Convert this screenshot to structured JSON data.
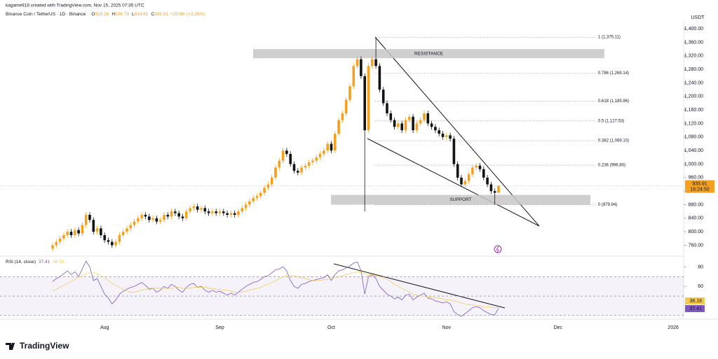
{
  "header": {
    "credit": "kagame918 created with TradingView.com, Nov 15, 2025 07:35 UTC"
  },
  "footer": "TradingView",
  "chart_data": [
    {
      "type": "candlestick",
      "title": "Binance Coin / TetherUS · 1D · Binance",
      "ohlc_prefixes": [
        "O",
        "H",
        "L",
        "C"
      ],
      "change": {
        "value": 20.66,
        "label": "+20.66"
      },
      "change_pct": {
        "value": 2.26,
        "label": "(+2.26%)"
      },
      "countdown": "16:24:50",
      "y_axis_label": "USDT",
      "colors": {
        "up": "#f5a01e",
        "down": "#131313"
      },
      "categories": [
        null,
        null,
        null,
        null,
        null,
        null,
        null,
        null,
        null,
        null,
        null,
        null,
        null,
        null,
        "Aug",
        null,
        null,
        null,
        null,
        null,
        null,
        null,
        null,
        null,
        null,
        null,
        null,
        null,
        null,
        null,
        null,
        null,
        null,
        null,
        null,
        null,
        null,
        null,
        null,
        null,
        null,
        null,
        null,
        null,
        null,
        "Sep",
        null,
        null,
        null,
        null,
        null,
        null,
        null,
        null,
        null,
        null,
        null,
        null,
        null,
        null,
        null,
        null,
        null,
        null,
        null,
        null,
        null,
        null,
        null,
        null,
        null,
        null,
        null,
        null,
        null,
        "Oct",
        null,
        null,
        null,
        null,
        null,
        null,
        null,
        null,
        null,
        null,
        null,
        null,
        null,
        null,
        null,
        null,
        null,
        null,
        null,
        null,
        null,
        null,
        null,
        null,
        null,
        null,
        null,
        null,
        null,
        null,
        "Nov",
        null,
        null,
        null,
        null,
        null,
        null,
        null,
        null,
        null,
        null,
        null,
        null,
        null,
        null,
        null,
        null,
        null,
        null,
        null,
        null,
        null,
        null,
        null,
        null,
        null,
        null,
        null,
        null,
        null,
        "Dec",
        null,
        null,
        null,
        null,
        null,
        null,
        null,
        null,
        null,
        null,
        null,
        null,
        null,
        null,
        null,
        null,
        null,
        null,
        null,
        null,
        null,
        null,
        null,
        null,
        null,
        null,
        null,
        null,
        null,
        null,
        "2026"
      ],
      "open": [
        750,
        760,
        770,
        780,
        790,
        800,
        790,
        805,
        795,
        820,
        850,
        835,
        800,
        810,
        790,
        775,
        770,
        760,
        770,
        790,
        800,
        810,
        820,
        830,
        840,
        850,
        845,
        835,
        840,
        830,
        835,
        850,
        845,
        860,
        855,
        845,
        840,
        860,
        870,
        875,
        865,
        870,
        860,
        855,
        860,
        855,
        860,
        855,
        850,
        855,
        850,
        860,
        870,
        880,
        890,
        900,
        905,
        915,
        930,
        940,
        960,
        990,
        1010,
        1040,
        1030,
        1000,
        980,
        975,
        990,
        995,
        1005,
        1010,
        1020,
        1030,
        1040,
        1060,
        1040,
        1090,
        1130,
        1150,
        1190,
        1230,
        1290,
        1310,
        1260,
        1100,
        1290,
        1310,
        1290,
        1220,
        1180,
        1150,
        1130,
        1110,
        1120,
        1100,
        1130,
        1140,
        1100,
        1120,
        1130,
        1150,
        1120,
        1110,
        1100,
        1090,
        1080,
        1085,
        1075,
        1000,
        960,
        940,
        950,
        970,
        990,
        995,
        985,
        960,
        940,
        920,
        915.26,
        null,
        null,
        null,
        null,
        null,
        null,
        null,
        null,
        null,
        null,
        null,
        null,
        null,
        null,
        null,
        null,
        null,
        null,
        null,
        null,
        null,
        null,
        null,
        null,
        null,
        null,
        null,
        null,
        null,
        null,
        null,
        null,
        null,
        null,
        null,
        null,
        null,
        null,
        null,
        null,
        null,
        null,
        null,
        null,
        null,
        null,
        null
      ],
      "high": [
        768,
        778,
        788,
        798,
        808,
        808,
        813,
        813,
        828,
        858,
        858,
        843,
        818,
        818,
        798,
        783,
        778,
        778,
        798,
        808,
        818,
        828,
        838,
        848,
        858,
        858,
        853,
        848,
        848,
        843,
        858,
        858,
        868,
        868,
        863,
        853,
        868,
        878,
        883,
        883,
        878,
        878,
        868,
        868,
        868,
        868,
        868,
        863,
        863,
        863,
        868,
        878,
        888,
        898,
        908,
        913,
        923,
        938,
        948,
        968,
        998,
        1018,
        1048,
        1048,
        1038,
        1008,
        988,
        998,
        1003,
        1013,
        1018,
        1028,
        1038,
        1048,
        1068,
        1068,
        1098,
        1138,
        1158,
        1198,
        1238,
        1298,
        1318,
        1318,
        1268,
        1298,
        1318,
        1375.11,
        1298,
        1228,
        1188,
        1158,
        1138,
        1128,
        1128,
        1138,
        1148,
        1148,
        1128,
        1138,
        1158,
        1158,
        1128,
        1118,
        1108,
        1098,
        1093,
        1093,
        1083,
        1008,
        968,
        958,
        978,
        998,
        1003,
        1003,
        993,
        968,
        948,
        928,
        936.79,
        null,
        null,
        null,
        null,
        null,
        null,
        null,
        null,
        null,
        null,
        null,
        null,
        null,
        null,
        null,
        null,
        null,
        null,
        null,
        null,
        null,
        null,
        null,
        null,
        null,
        null,
        null,
        null,
        null,
        null,
        null,
        null,
        null,
        null,
        null,
        null,
        null,
        null,
        null,
        null,
        null,
        null,
        null,
        null,
        null,
        null,
        null
      ],
      "low": [
        742,
        752,
        762,
        772,
        782,
        782,
        782,
        787,
        787,
        812,
        827,
        792,
        792,
        782,
        767,
        762,
        752,
        752,
        762,
        782,
        792,
        802,
        812,
        822,
        832,
        837,
        827,
        827,
        822,
        822,
        827,
        837,
        837,
        847,
        837,
        832,
        832,
        852,
        862,
        857,
        857,
        852,
        847,
        847,
        847,
        847,
        847,
        842,
        842,
        842,
        842,
        852,
        862,
        872,
        882,
        892,
        897,
        907,
        922,
        932,
        952,
        982,
        1002,
        1022,
        992,
        972,
        967,
        967,
        982,
        987,
        997,
        1002,
        1012,
        1022,
        1032,
        1032,
        1032,
        1082,
        1122,
        1142,
        1182,
        1222,
        1282,
        1252,
        860,
        1092,
        1282,
        1282,
        1212,
        1172,
        1142,
        1122,
        1102,
        1102,
        1092,
        1092,
        1122,
        1092,
        1092,
        1112,
        1122,
        1112,
        1102,
        1092,
        1082,
        1072,
        1072,
        1067,
        992,
        952,
        932,
        932,
        942,
        962,
        982,
        977,
        952,
        932,
        912,
        879.94,
        914.91,
        null,
        null,
        null,
        null,
        null,
        null,
        null,
        null,
        null,
        null,
        null,
        null,
        null,
        null,
        null,
        null,
        null,
        null,
        null,
        null,
        null,
        null,
        null,
        null,
        null,
        null,
        null,
        null,
        null,
        null,
        null,
        null,
        null,
        null,
        null,
        null,
        null,
        null,
        null,
        null,
        null,
        null,
        null,
        null,
        null,
        null,
        null
      ],
      "close": [
        760,
        770,
        780,
        790,
        800,
        790,
        805,
        795,
        820,
        850,
        835,
        800,
        810,
        790,
        775,
        770,
        760,
        770,
        790,
        800,
        810,
        820,
        830,
        840,
        850,
        845,
        835,
        840,
        830,
        835,
        850,
        845,
        860,
        855,
        845,
        840,
        860,
        870,
        875,
        865,
        870,
        860,
        855,
        860,
        855,
        860,
        855,
        850,
        855,
        850,
        860,
        870,
        880,
        890,
        900,
        905,
        915,
        930,
        940,
        960,
        990,
        1010,
        1040,
        1030,
        1000,
        980,
        975,
        990,
        995,
        1005,
        1010,
        1020,
        1030,
        1040,
        1060,
        1040,
        1090,
        1130,
        1150,
        1190,
        1230,
        1290,
        1310,
        1260,
        1100,
        1290,
        1310,
        1290,
        1220,
        1180,
        1150,
        1130,
        1110,
        1120,
        1100,
        1130,
        1140,
        1100,
        1120,
        1130,
        1150,
        1120,
        1110,
        1100,
        1090,
        1080,
        1085,
        1075,
        1000,
        960,
        940,
        950,
        970,
        990,
        995,
        985,
        960,
        940,
        920,
        915.26,
        935.91,
        null,
        null,
        null,
        null,
        null,
        null,
        null,
        null,
        null,
        null,
        null,
        null,
        null,
        null,
        null,
        null,
        null,
        null,
        null,
        null,
        null,
        null,
        null,
        null,
        null,
        null,
        null,
        null,
        null,
        null,
        null,
        null,
        null,
        null,
        null,
        null,
        null,
        null,
        null,
        null,
        null,
        null,
        null,
        null,
        null,
        null,
        null
      ],
      "ylim": [
        730,
        1423
      ],
      "yticks": [
        {
          "value": 760,
          "label": "760.00"
        },
        {
          "value": 800,
          "label": "800.00"
        },
        {
          "value": 840,
          "label": "840.00"
        },
        {
          "value": 880,
          "label": "880.00"
        },
        {
          "value": 920,
          "label": "920.00"
        },
        {
          "value": 960,
          "label": "960.00"
        },
        {
          "value": 1000,
          "label": "1,000.00"
        },
        {
          "value": 1040,
          "label": "1,040.00"
        },
        {
          "value": 1080,
          "label": "1,080.00"
        },
        {
          "value": 1120,
          "label": "1,120.00"
        },
        {
          "value": 1160,
          "label": "1,160.00"
        },
        {
          "value": 1200,
          "label": "1,200.00"
        },
        {
          "value": 1240,
          "label": "1,240.00"
        },
        {
          "value": 1280,
          "label": "1,280.00"
        },
        {
          "value": 1320,
          "label": "1,320.00"
        },
        {
          "value": 1360,
          "label": "1,360.00"
        },
        {
          "value": 1400,
          "label": "1,400.00"
        }
      ],
      "fib_levels": [
        {
          "value": 1375.11,
          "label": "1 (1,375.11)"
        },
        {
          "value": 1269.14,
          "label": "0.786 (1,269.14)"
        },
        {
          "value": 1185.96,
          "label": "0.618 (1,185.96)"
        },
        {
          "value": 1127.53,
          "label": "0.5 (1,127.53)"
        },
        {
          "value": 1069.1,
          "label": "0.382 (1,069.10)"
        },
        {
          "value": 996.8,
          "label": "0.236 (996.80)"
        },
        {
          "value": 879.94,
          "label": "0 (879.94)"
        }
      ],
      "zones": [
        {
          "label": "RESISTANCE",
          "range": [
            1313,
            1340
          ]
        },
        {
          "label": "SUPPORT",
          "range": [
            880,
            909
          ]
        }
      ]
    },
    {
      "type": "line",
      "title": "RSI (14, close)",
      "series": [
        {
          "color": "#7e57c2",
          "values": [
            65,
            68,
            70,
            73,
            76,
            72,
            75,
            70,
            78,
            86,
            80,
            66,
            68,
            60,
            52,
            48,
            42,
            46,
            52,
            55,
            57,
            59,
            60,
            62,
            64,
            61,
            57,
            58,
            54,
            56,
            60,
            58,
            62,
            60,
            56,
            54,
            59,
            62,
            63,
            59,
            60,
            56,
            54,
            56,
            54,
            55,
            53,
            51,
            53,
            51,
            54,
            57,
            60,
            62,
            64,
            65,
            67,
            70,
            71,
            74,
            77,
            78,
            80,
            76,
            66,
            60,
            58,
            62,
            63,
            65,
            66,
            67,
            68,
            69,
            72,
            66,
            72,
            76,
            77,
            79,
            81,
            84,
            85,
            76,
            52,
            70,
            72,
            68,
            60,
            56,
            52,
            50,
            47,
            49,
            46,
            51,
            52,
            46,
            49,
            51,
            53,
            48,
            47,
            45,
            44,
            43,
            44,
            42,
            34,
            31,
            29,
            32,
            35,
            38,
            39,
            38,
            35,
            33,
            31,
            30.5,
            37.41
          ]
        },
        {
          "color": "#f2c94c",
          "values": [
            55,
            57,
            59,
            61,
            63,
            65,
            67,
            69,
            71,
            73,
            74,
            74,
            73,
            71,
            69,
            66,
            63,
            61,
            59,
            57,
            55,
            54,
            54,
            55,
            56,
            57,
            58,
            58,
            58,
            58,
            58,
            58,
            58,
            59,
            59,
            58,
            58,
            58,
            59,
            59,
            59,
            59,
            58,
            58,
            57,
            57,
            56,
            56,
            55,
            54,
            54,
            54,
            55,
            56,
            57,
            58,
            59,
            61,
            62,
            64,
            66,
            68,
            70,
            71,
            71,
            71,
            70,
            69,
            68,
            67,
            66,
            66,
            66,
            67,
            67,
            68,
            69,
            70,
            71,
            72,
            73,
            74,
            75,
            75,
            73,
            72,
            72,
            71,
            70,
            69,
            67,
            65,
            62,
            60,
            58,
            56,
            54,
            52,
            51,
            50,
            50,
            49,
            49,
            48,
            48,
            47,
            46,
            46,
            45,
            44,
            43,
            42,
            41,
            41,
            40,
            40,
            39,
            39,
            38.5,
            38.3,
            38.18
          ]
        }
      ],
      "ylim": [
        27,
        90.4
      ],
      "yticks": [
        60,
        80
      ],
      "band": [
        30,
        70
      ],
      "midline": 50
    }
  ]
}
